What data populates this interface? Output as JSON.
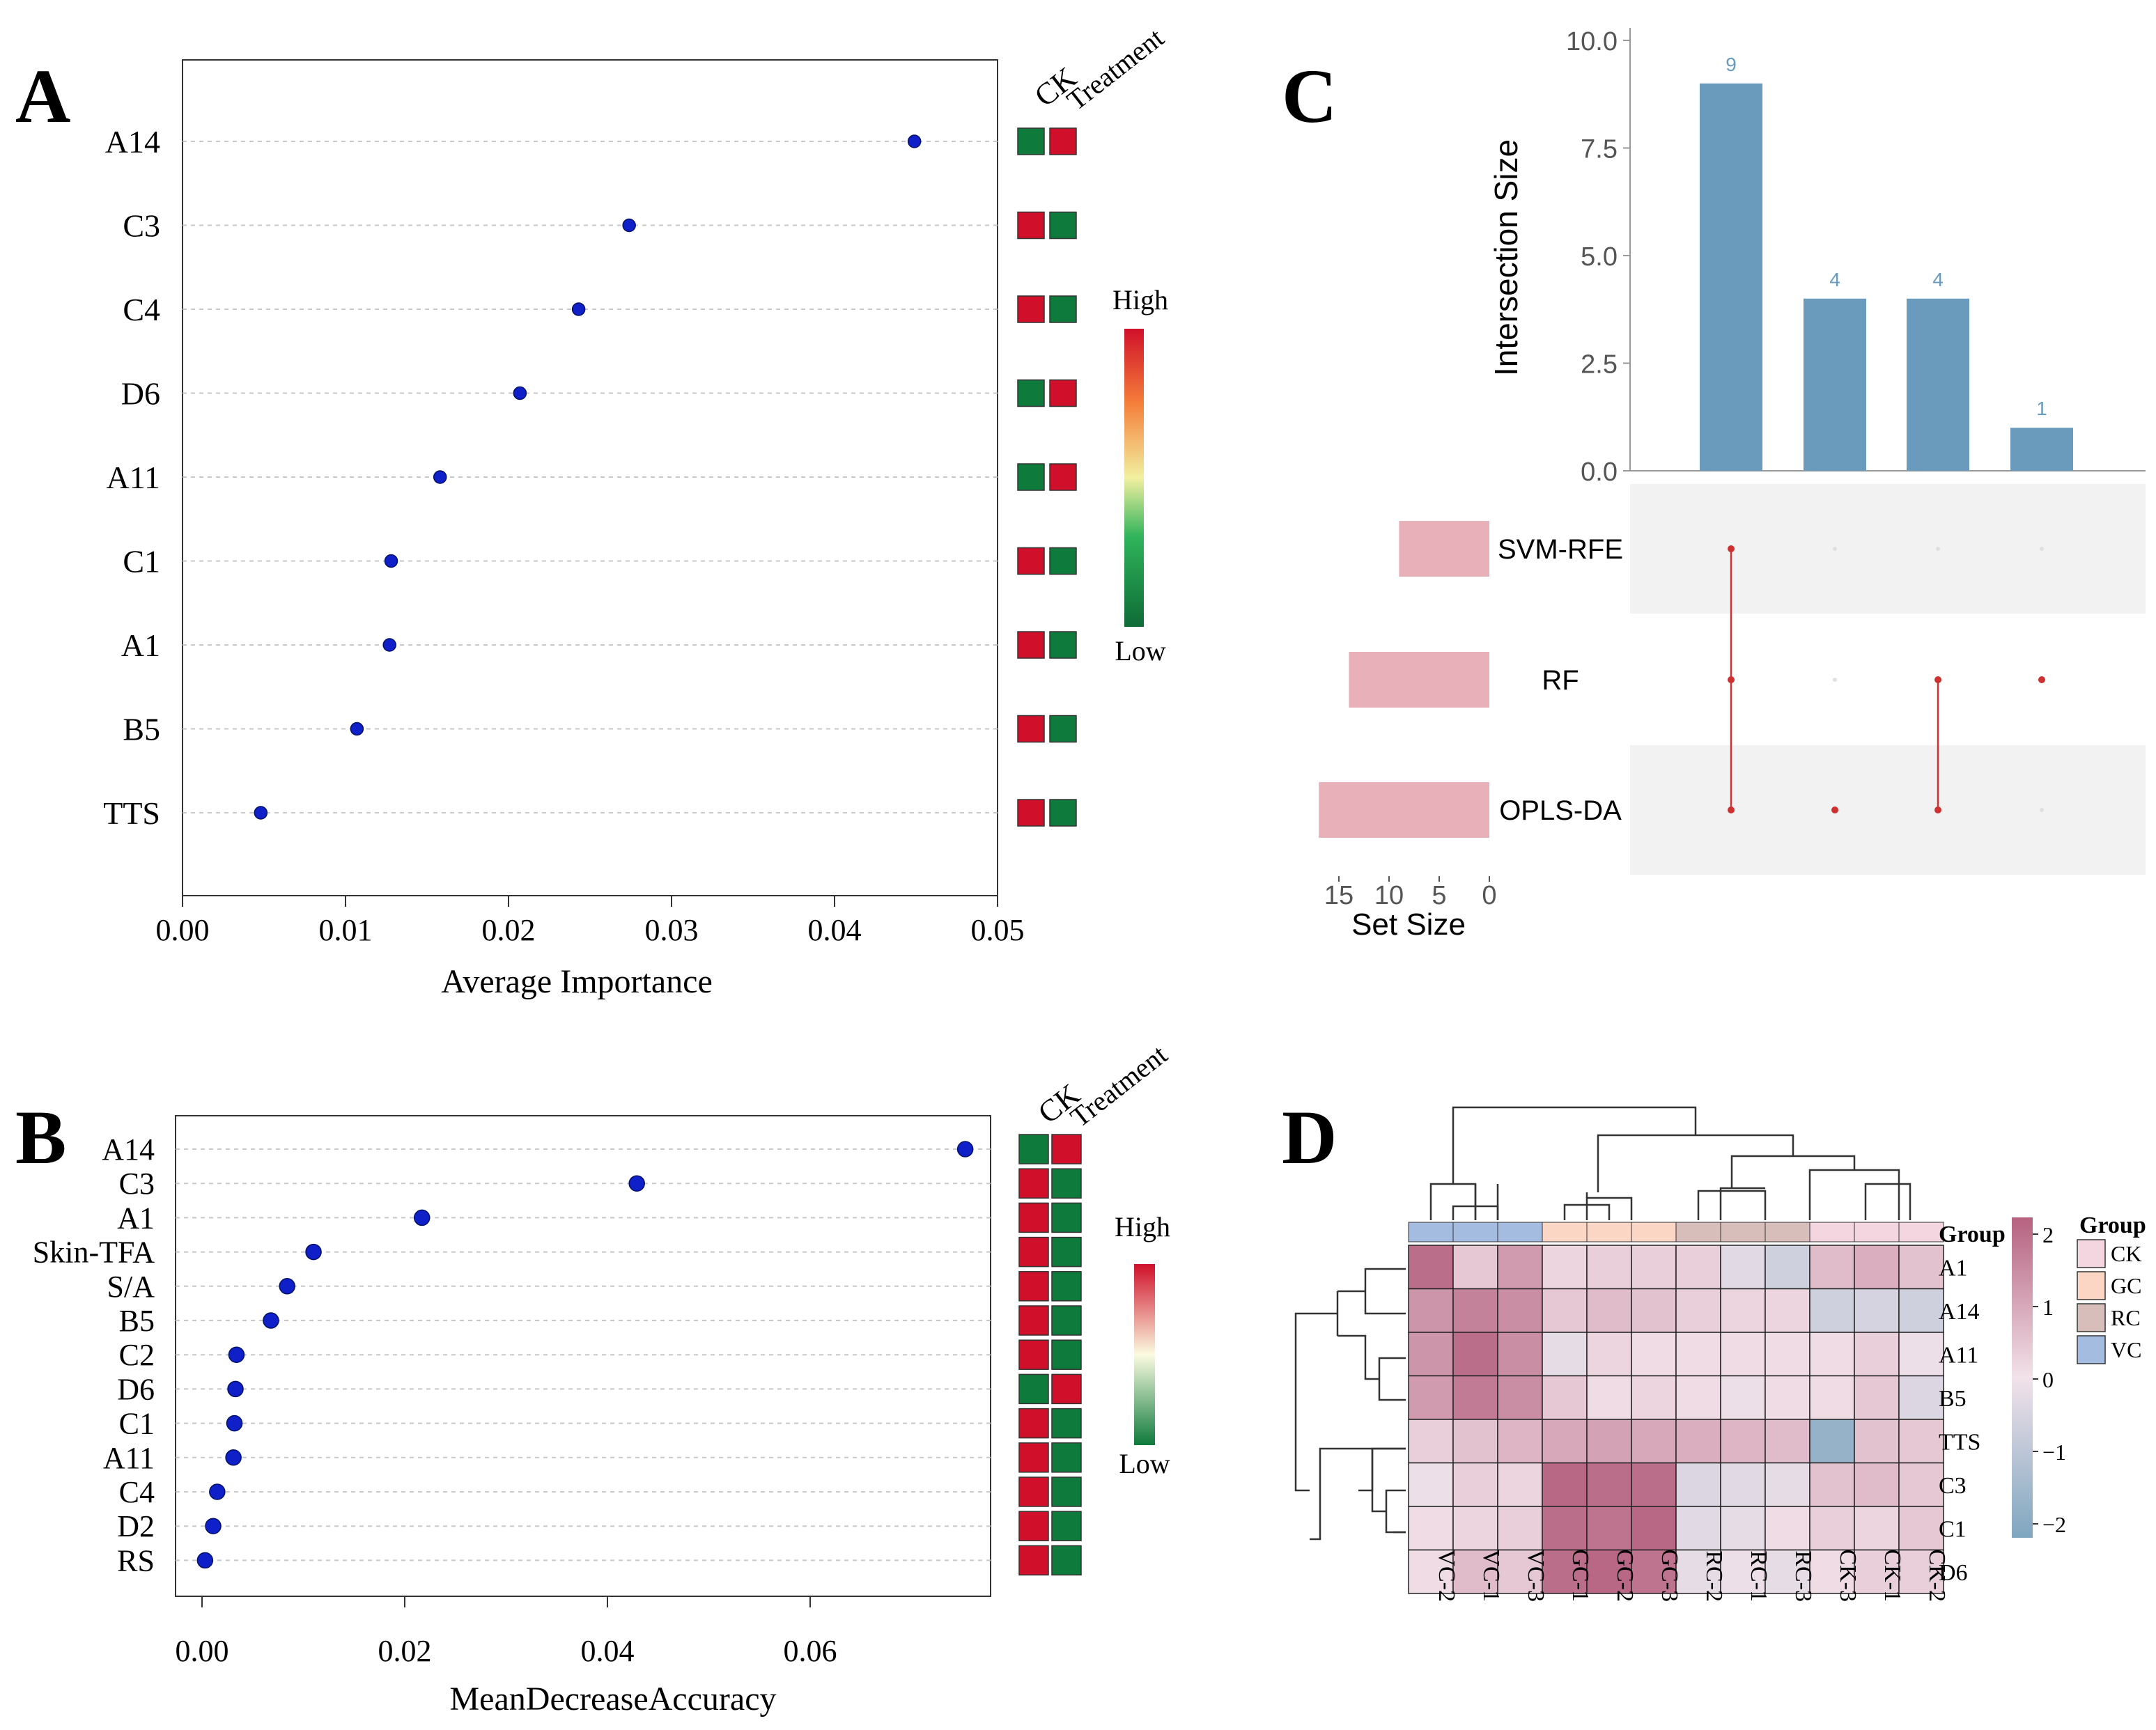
{
  "panel_labels": [
    "A",
    "B",
    "C",
    "D"
  ],
  "chart_data": [
    {
      "panel": "A",
      "type": "scatter",
      "title": "",
      "xlabel": "Average Importance",
      "ylabel": "",
      "xlim": [
        0,
        0.05
      ],
      "xticks": [
        "0.00",
        "0.01",
        "0.02",
        "0.03",
        "0.04",
        "0.05"
      ],
      "grid": "horizontal-dashed",
      "categories": [
        "A14",
        "C3",
        "C4",
        "D6",
        "A11",
        "C1",
        "A1",
        "B5",
        "TTS"
      ],
      "values": [
        0.0449,
        0.0274,
        0.0243,
        0.0207,
        0.0158,
        0.0128,
        0.0127,
        0.0107,
        0.0048
      ],
      "group_headers": [
        "CK",
        "Treatment"
      ],
      "group_colors": [
        [
          "low",
          "high"
        ],
        [
          "high",
          "low"
        ],
        [
          "high",
          "low"
        ],
        [
          "low",
          "high"
        ],
        [
          "low",
          "high"
        ],
        [
          "high",
          "low"
        ],
        [
          "high",
          "low"
        ],
        [
          "high",
          "low"
        ],
        [
          "high",
          "low"
        ]
      ],
      "legend": {
        "high_label": "High",
        "low_label": "Low"
      }
    },
    {
      "panel": "B",
      "type": "scatter",
      "title": "",
      "xlabel": "MeanDecreaseAccuracy",
      "ylabel": "",
      "xlim": [
        0,
        0.078
      ],
      "xticks": [
        "0.00",
        "0.02",
        "0.04",
        "0.06"
      ],
      "grid": "horizontal-dashed",
      "categories": [
        "A14",
        "C3",
        "A1",
        "Skin-TFA",
        "S/A",
        "B5",
        "C2",
        "D6",
        "C1",
        "A11",
        "C4",
        "D2",
        "RS"
      ],
      "values": [
        0.0753,
        0.0429,
        0.0217,
        0.011,
        0.0084,
        0.0068,
        0.0034,
        0.0033,
        0.0032,
        0.0031,
        0.0015,
        0.0011,
        0.0003
      ],
      "group_headers": [
        "CK",
        "Treatment"
      ],
      "group_colors": [
        [
          "low",
          "high"
        ],
        [
          "high",
          "low"
        ],
        [
          "high",
          "low"
        ],
        [
          "high",
          "low"
        ],
        [
          "high",
          "low"
        ],
        [
          "high",
          "low"
        ],
        [
          "high",
          "low"
        ],
        [
          "low",
          "high"
        ],
        [
          "high",
          "low"
        ],
        [
          "high",
          "low"
        ],
        [
          "high",
          "low"
        ],
        [
          "high",
          "low"
        ],
        [
          "high",
          "low"
        ]
      ],
      "legend": {
        "high_label": "High",
        "low_label": "Low"
      }
    },
    {
      "panel": "C",
      "type": "bar",
      "subtype": "upset",
      "title": "",
      "ylabel": "Intersection Size",
      "ylim": [
        0,
        10
      ],
      "yticks": [
        "0.0",
        "2.5",
        "5.0",
        "7.5",
        "10.0"
      ],
      "intersection_values": [
        9,
        4,
        4,
        1
      ],
      "intersection_labels": [
        "9",
        "4",
        "4",
        "1"
      ],
      "sets": [
        "SVM-RFE",
        "RF",
        "OPLS-DA"
      ],
      "set_sizes": [
        9,
        14,
        17
      ],
      "set_size_label": "Set Size",
      "set_size_ticks": [
        "15",
        "10",
        "5",
        "0"
      ],
      "membership": [
        [
          1,
          1,
          1
        ],
        [
          0,
          0,
          1
        ],
        [
          0,
          1,
          1
        ],
        [
          0,
          1,
          0
        ]
      ]
    },
    {
      "panel": "D",
      "type": "heatmap",
      "title": "",
      "rows": [
        "A1",
        "A14",
        "A11",
        "B5",
        "TTS",
        "C3",
        "C1",
        "D6"
      ],
      "columns": [
        "VC-2",
        "VC-1",
        "VC-3",
        "GC-1",
        "GC-2",
        "GC-3",
        "RC-2",
        "RC-1",
        "RC-3",
        "CK-3",
        "CK-1",
        "CK-2"
      ],
      "column_groups": [
        "VC",
        "VC",
        "VC",
        "GC",
        "GC",
        "GC",
        "RC",
        "RC",
        "RC",
        "CK",
        "CK",
        "CK"
      ],
      "values": [
        [
          1.8,
          0.4,
          1.1,
          0.2,
          0.3,
          0.3,
          0.3,
          -0.3,
          -0.6,
          0.6,
          0.8,
          0.5
        ],
        [
          1.2,
          1.5,
          1.3,
          0.4,
          0.6,
          0.5,
          0.3,
          0.2,
          0.2,
          -0.6,
          -0.5,
          -0.6
        ],
        [
          1.2,
          1.8,
          1.3,
          -0.2,
          0.2,
          0.1,
          0.1,
          0.1,
          0.1,
          0.1,
          0.3,
          -0.1
        ],
        [
          1.1,
          1.6,
          1.3,
          0.4,
          0.1,
          0.2,
          0.1,
          -0.1,
          0.1,
          0.1,
          0.4,
          -0.4
        ],
        [
          0.3,
          0.5,
          0.7,
          0.9,
          1.0,
          0.9,
          0.8,
          0.7,
          0.6,
          -1.6,
          0.5,
          0.4
        ],
        [
          -0.1,
          0.3,
          0.2,
          1.9,
          1.8,
          1.8,
          -0.4,
          -0.3,
          -0.2,
          0.5,
          0.6,
          0.4
        ],
        [
          0.1,
          0.2,
          0.3,
          1.8,
          1.7,
          1.9,
          -0.3,
          -0.2,
          0.1,
          0.3,
          0.2,
          0.4
        ],
        [
          0.1,
          0.6,
          0.4,
          1.8,
          1.9,
          1.7,
          -0.2,
          -0.1,
          -0.2,
          0.1,
          0.3,
          0.3
        ]
      ],
      "colorbar_ticks": [
        "2",
        "1",
        "0",
        "−1",
        "−2"
      ],
      "group_annotation_label": "Group",
      "legend_title": "Group",
      "legend_items": [
        "CK",
        "GC",
        "RC",
        "VC"
      ],
      "group_colors": {
        "CK": "#f4d6e0",
        "GC": "#fbd6c4",
        "RC": "#d8beba",
        "VC": "#a4bce0"
      }
    }
  ],
  "colors": {
    "high": "#d0102a",
    "low": "#0e7a3c",
    "point": "#1020c8",
    "bar": "#6a9bbd",
    "setbar": "#e8b0b8",
    "dot": "#d03030",
    "heat_high": "#b5617f",
    "heat_mid": "#f2e2ea",
    "heat_low": "#7ea6bf"
  }
}
